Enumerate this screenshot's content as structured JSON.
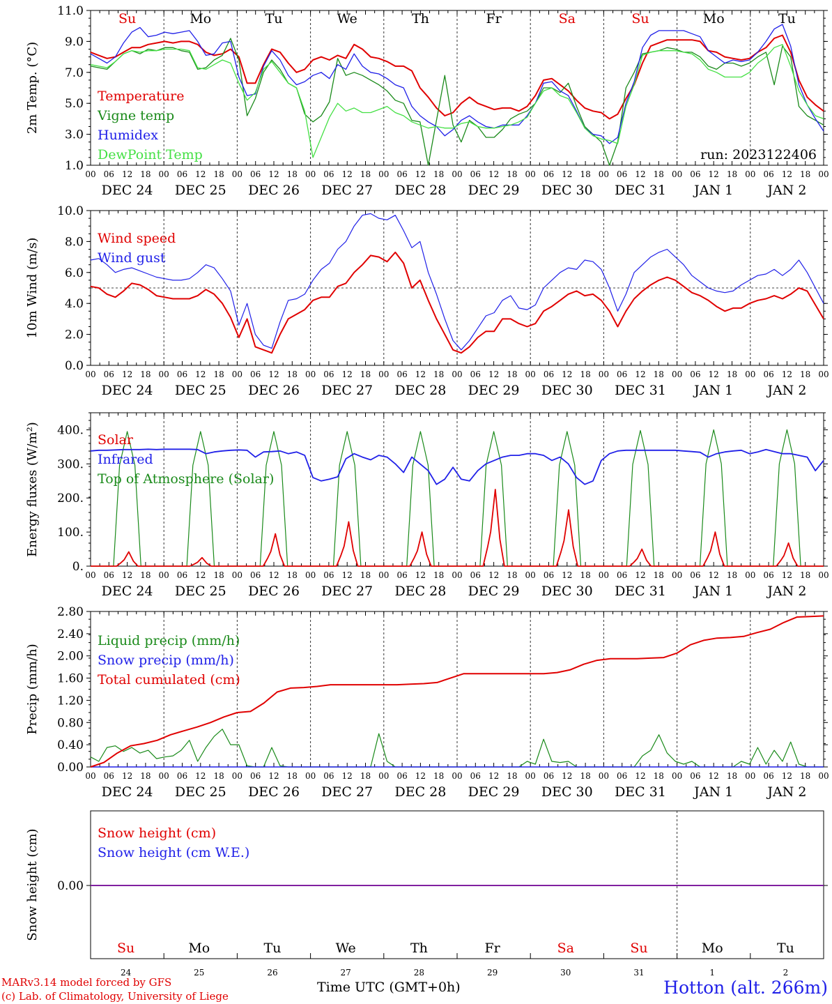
{
  "colors": {
    "red": "#e00000",
    "green": "#1a8a1a",
    "blue": "#2020e8",
    "lightgreen": "#44e044",
    "purple": "#8020a0",
    "grid": "#555555"
  },
  "days": {
    "labels": [
      "Su",
      "Mo",
      "Tu",
      "We",
      "Th",
      "Fr",
      "Sa",
      "Su",
      "Mo",
      "Tu"
    ],
    "weekend_color": [
      "red",
      "black",
      "black",
      "black",
      "black",
      "black",
      "red",
      "red",
      "black",
      "black"
    ],
    "dates": [
      "DEC 24",
      "DEC 25",
      "DEC 26",
      "DEC 27",
      "DEC 28",
      "DEC 29",
      "DEC 30",
      "DEC 31",
      "JAN  1",
      "JAN  2"
    ],
    "day_numbers": [
      "24",
      "25",
      "26",
      "27",
      "28",
      "29",
      "30",
      "31",
      "1",
      "2"
    ]
  },
  "hour_ticks": [
    "00",
    "06",
    "12",
    "18"
  ],
  "footer": {
    "credit_line1": "MARv3.14 model forced by GFS",
    "credit_line2": "(c) Lab. of Climatology, University of Liege",
    "x_title": "Time UTC (GMT+0h)",
    "station": "Hotton (alt. 266m)"
  },
  "chart_data": [
    {
      "type": "line",
      "ylabel": "2m Temp. (°C)",
      "ylim": [
        1.0,
        11.0
      ],
      "yticks": [
        "1.0",
        "3.0",
        "5.0",
        "7.0",
        "9.0",
        "11.0"
      ],
      "run_label": "run: 2023122406",
      "x_unit": "hours since DEC 24 00 UTC, 10 days",
      "series": [
        {
          "name": "Temperature",
          "color": "red",
          "values": [
            8.3,
            8.1,
            7.9,
            8.0,
            8.3,
            8.6,
            8.6,
            8.8,
            8.9,
            9.0,
            8.9,
            9.0,
            9.0,
            8.8,
            8.3,
            8.1,
            8.2,
            8.5,
            8.0,
            6.3,
            6.3,
            7.5,
            8.5,
            8.3,
            7.6,
            7.0,
            7.2,
            7.8,
            8.0,
            7.8,
            8.1,
            7.9,
            8.8,
            8.5,
            8.0,
            7.9,
            7.7,
            7.4,
            7.4,
            7.1,
            6.0,
            5.4,
            4.7,
            4.2,
            4.4,
            5.0,
            5.4,
            5.0,
            4.8,
            4.6,
            4.7,
            4.7,
            4.5,
            4.8,
            5.5,
            6.5,
            6.6,
            6.2,
            5.8,
            5.2,
            4.7,
            4.5,
            4.4,
            4.0,
            4.3,
            5.3,
            6.2,
            7.6,
            8.7,
            8.9,
            9.1,
            9.1,
            9.1,
            9.1,
            9.0,
            8.4,
            8.3,
            8.0,
            7.9,
            7.8,
            7.9,
            8.3,
            8.6,
            9.2,
            9.4,
            8.3,
            6.5,
            5.4,
            4.9,
            4.5
          ]
        },
        {
          "name": "Vigne temp",
          "color": "green",
          "values": [
            7.4,
            7.3,
            7.2,
            7.7,
            8.2,
            8.4,
            8.2,
            8.5,
            8.4,
            8.6,
            8.6,
            8.4,
            8.3,
            7.2,
            7.3,
            7.8,
            8.1,
            9.2,
            7.8,
            4.2,
            5.3,
            7.0,
            7.8,
            7.2,
            6.3,
            6.0,
            4.3,
            3.8,
            4.2,
            5.1,
            7.9,
            6.8,
            7.0,
            6.8,
            6.5,
            6.2,
            5.8,
            5.2,
            5.0,
            3.9,
            3.8,
            0.4,
            3.9,
            6.8,
            3.6,
            2.5,
            3.9,
            3.5,
            2.8,
            2.8,
            3.3,
            4.0,
            4.3,
            4.5,
            5.0,
            6.0,
            6.0,
            5.7,
            6.3,
            4.8,
            3.5,
            3.0,
            2.5,
            1.0,
            2.5,
            6.0,
            7.0,
            8.2,
            8.3,
            8.4,
            8.6,
            8.5,
            8.3,
            8.3,
            8.0,
            7.4,
            7.2,
            7.6,
            7.6,
            7.4,
            7.6,
            8.0,
            8.3,
            6.2,
            8.7,
            8.0,
            4.8,
            4.2,
            3.9,
            3.6
          ]
        },
        {
          "name": "Humidex",
          "color": "blue",
          "values": [
            8.2,
            7.9,
            7.6,
            8.0,
            8.9,
            9.6,
            9.9,
            9.3,
            9.4,
            9.6,
            9.5,
            9.6,
            9.7,
            9.0,
            8.1,
            8.2,
            8.9,
            9.0,
            6.7,
            5.5,
            5.6,
            7.4,
            8.4,
            7.8,
            6.8,
            6.2,
            6.4,
            6.8,
            7.0,
            6.6,
            7.5,
            7.2,
            8.2,
            7.4,
            7.0,
            6.9,
            6.6,
            6.2,
            6.0,
            4.8,
            4.2,
            3.8,
            3.5,
            2.9,
            3.3,
            3.9,
            4.2,
            3.8,
            3.5,
            3.4,
            3.6,
            3.6,
            3.6,
            4.2,
            5.0,
            6.3,
            6.4,
            5.8,
            5.5,
            4.5,
            3.4,
            3.0,
            2.9,
            2.4,
            2.8,
            5.0,
            6.4,
            8.6,
            9.4,
            9.7,
            9.7,
            9.7,
            9.7,
            9.5,
            9.3,
            8.4,
            8.0,
            7.6,
            7.8,
            7.7,
            7.8,
            8.3,
            9.0,
            9.8,
            10.1,
            8.7,
            6.2,
            4.9,
            4.0,
            3.2
          ]
        },
        {
          "name": "DewPoint Temp",
          "color": "lightgreen",
          "values": [
            7.5,
            7.4,
            7.3,
            7.7,
            8.2,
            8.4,
            8.3,
            8.4,
            8.4,
            8.5,
            8.5,
            8.5,
            8.4,
            7.3,
            7.2,
            7.5,
            7.8,
            7.6,
            6.3,
            5.2,
            5.7,
            7.2,
            7.7,
            7.0,
            6.3,
            6.0,
            4.5,
            1.5,
            2.8,
            4.1,
            5.0,
            4.5,
            4.7,
            4.4,
            4.4,
            4.6,
            4.8,
            4.4,
            4.2,
            3.8,
            3.6,
            3.4,
            3.5,
            3.4,
            3.4,
            3.7,
            3.8,
            3.5,
            3.4,
            3.4,
            3.5,
            3.6,
            3.8,
            4.1,
            5.0,
            5.8,
            6.0,
            5.5,
            5.3,
            4.4,
            3.4,
            2.9,
            2.7,
            2.6,
            2.4,
            4.8,
            6.2,
            8.1,
            8.3,
            8.4,
            8.4,
            8.4,
            8.3,
            8.2,
            7.8,
            7.2,
            7.0,
            6.7,
            6.7,
            6.7,
            7.0,
            7.6,
            8.0,
            8.6,
            8.8,
            7.4,
            5.8,
            4.9,
            4.2,
            4.0
          ]
        }
      ],
      "points_per_series": 90
    },
    {
      "type": "line",
      "ylabel": "10m Wind (m/s)",
      "ylim": [
        0.0,
        10.0
      ],
      "yticks": [
        "0.0",
        "2.0",
        "4.0",
        "6.0",
        "8.0",
        "10.0"
      ],
      "reference_line": 5.0,
      "series": [
        {
          "name": "Wind speed",
          "color": "red",
          "values": [
            5.1,
            5.0,
            4.6,
            4.4,
            4.8,
            5.3,
            5.2,
            4.9,
            4.5,
            4.4,
            4.3,
            4.3,
            4.3,
            4.5,
            4.9,
            4.6,
            4.0,
            3.1,
            1.8,
            3.0,
            1.2,
            1.0,
            0.8,
            2.0,
            3.0,
            3.3,
            3.6,
            4.2,
            4.4,
            4.4,
            5.1,
            5.3,
            6.0,
            6.5,
            7.1,
            7.0,
            6.7,
            7.3,
            6.6,
            5.0,
            5.5,
            4.2,
            3.0,
            2.0,
            1.0,
            0.8,
            1.2,
            1.8,
            2.2,
            2.2,
            3.0,
            3.0,
            2.7,
            2.5,
            2.7,
            3.5,
            3.8,
            4.2,
            4.6,
            4.8,
            4.5,
            4.6,
            4.2,
            3.5,
            2.5,
            3.5,
            4.3,
            4.8,
            5.2,
            5.5,
            5.7,
            5.5,
            5.1,
            4.7,
            4.5,
            4.2,
            3.8,
            3.5,
            3.7,
            3.7,
            4.0,
            4.2,
            4.3,
            4.5,
            4.3,
            4.6,
            5.0,
            4.8,
            3.9,
            3.0
          ]
        },
        {
          "name": "Wind gust",
          "color": "blue",
          "values": [
            6.8,
            6.9,
            6.5,
            6.0,
            6.2,
            6.3,
            6.1,
            5.9,
            5.7,
            5.6,
            5.5,
            5.5,
            5.6,
            6.0,
            6.5,
            6.3,
            5.6,
            4.8,
            2.6,
            4.0,
            2.0,
            1.3,
            1.1,
            2.8,
            4.2,
            4.3,
            4.6,
            5.5,
            6.2,
            6.6,
            7.5,
            8.0,
            9.0,
            9.7,
            9.8,
            9.5,
            9.4,
            9.7,
            8.7,
            7.6,
            8.0,
            6.0,
            4.6,
            3.0,
            1.6,
            1.0,
            1.6,
            2.4,
            3.2,
            3.4,
            4.2,
            4.5,
            3.7,
            3.6,
            3.9,
            5.0,
            5.5,
            6.0,
            6.3,
            6.2,
            6.8,
            6.7,
            6.2,
            5.0,
            3.5,
            4.6,
            6.0,
            6.5,
            7.0,
            7.3,
            7.5,
            7.0,
            6.5,
            5.8,
            5.4,
            5.0,
            4.8,
            4.7,
            4.8,
            5.2,
            5.5,
            5.8,
            5.9,
            6.2,
            5.8,
            6.2,
            6.8,
            6.0,
            5.0,
            4.0
          ]
        }
      ]
    },
    {
      "type": "line",
      "ylabel": "Energy fluxes (W/m²)",
      "ylim": [
        0,
        450
      ],
      "yticks": [
        "0.",
        "100.",
        "200.",
        "300.",
        "400."
      ],
      "series": [
        {
          "name": "Solar",
          "color": "red",
          "days_peak": [
            42,
            25,
            95,
            130,
            100,
            225,
            165,
            50,
            100,
            68
          ]
        },
        {
          "name": "Infrared",
          "color": "blue",
          "values": [
            338,
            340,
            340,
            341,
            342,
            342,
            342,
            343,
            342,
            343,
            343,
            343,
            343,
            342,
            330,
            335,
            338,
            340,
            341,
            340,
            320,
            335,
            336,
            338,
            330,
            335,
            325,
            260,
            250,
            255,
            262,
            315,
            330,
            320,
            312,
            325,
            320,
            300,
            275,
            320,
            300,
            280,
            240,
            255,
            290,
            255,
            250,
            280,
            300,
            310,
            320,
            325,
            325,
            330,
            330,
            325,
            310,
            320,
            300,
            260,
            240,
            250,
            310,
            330,
            338,
            340,
            340,
            340,
            340,
            340,
            340,
            340,
            338,
            336,
            334,
            320,
            330,
            335,
            338,
            340,
            330,
            335,
            342,
            336,
            330,
            330,
            325,
            320,
            280,
            310
          ]
        },
        {
          "name": "Top of Atmosphere (Solar)",
          "color": "green",
          "days_peak": [
            395,
            395,
            395,
            395,
            395,
            395,
            395,
            398,
            400,
            400
          ]
        }
      ]
    },
    {
      "type": "line",
      "ylabel": "Precip (mm/h)",
      "ylim": [
        0.0,
        2.8
      ],
      "yticks": [
        "0.00",
        "0.40",
        "0.80",
        "1.20",
        "1.60",
        "2.00",
        "2.40",
        "2.80"
      ],
      "series": [
        {
          "name": "Liquid precip (mm/h)",
          "color": "green",
          "values": [
            0.18,
            0.1,
            0.35,
            0.38,
            0.28,
            0.35,
            0.25,
            0.3,
            0.15,
            0.18,
            0.2,
            0.3,
            0.48,
            0.1,
            0.35,
            0.55,
            0.68,
            0.4,
            0.4,
            0.02,
            0.0,
            0.0,
            0.35,
            0.02,
            0.0,
            0.0,
            0.0,
            0.0,
            0.0,
            0.0,
            0.0,
            0.0,
            0.0,
            0.0,
            0.0,
            0.6,
            0.1,
            0.0,
            0.0,
            0.0,
            0.0,
            0.0,
            0.0,
            0.0,
            0.0,
            0.0,
            0.0,
            0.0,
            0.0,
            0.0,
            0.0,
            0.0,
            0.0,
            0.1,
            0.05,
            0.5,
            0.1,
            0.08,
            0.1,
            0.0,
            0.0,
            0.0,
            0.0,
            0.0,
            0.0,
            0.0,
            0.0,
            0.2,
            0.3,
            0.58,
            0.25,
            0.1,
            0.05,
            0.1,
            0.0,
            0.0,
            0.0,
            0.0,
            0.0,
            0.1,
            0.05,
            0.35,
            0.05,
            0.3,
            0.1,
            0.45,
            0.05,
            0.0,
            0.0,
            0.0
          ]
        },
        {
          "name": "Snow precip (mm/h)",
          "color": "blue",
          "values": []
        },
        {
          "name": "Total cumulated (cm)",
          "color": "red",
          "values": [
            0.0,
            0.08,
            0.25,
            0.38,
            0.42,
            0.48,
            0.58,
            0.65,
            0.72,
            0.8,
            0.9,
            0.98,
            1.0,
            1.15,
            1.35,
            1.42,
            1.43,
            1.45,
            1.48,
            1.48,
            1.48,
            1.48,
            1.48,
            1.48,
            1.49,
            1.5,
            1.52,
            1.6,
            1.68,
            1.68,
            1.68,
            1.68,
            1.68,
            1.68,
            1.68,
            1.7,
            1.75,
            1.85,
            1.92,
            1.95,
            1.95,
            1.95,
            1.96,
            1.97,
            2.05,
            2.2,
            2.28,
            2.32,
            2.33,
            2.35,
            2.42,
            2.48,
            2.6,
            2.7,
            2.71,
            2.72
          ]
        }
      ]
    },
    {
      "type": "line",
      "ylabel": "Snow height (cm)",
      "yticks": [
        "0.00"
      ],
      "series": [
        {
          "name": "Snow height (cm)",
          "color": "red",
          "values": [
            0,
            0
          ]
        },
        {
          "name": "Snow height (cm W.E.)",
          "color": "blue",
          "values": [
            0,
            0
          ]
        }
      ]
    }
  ]
}
